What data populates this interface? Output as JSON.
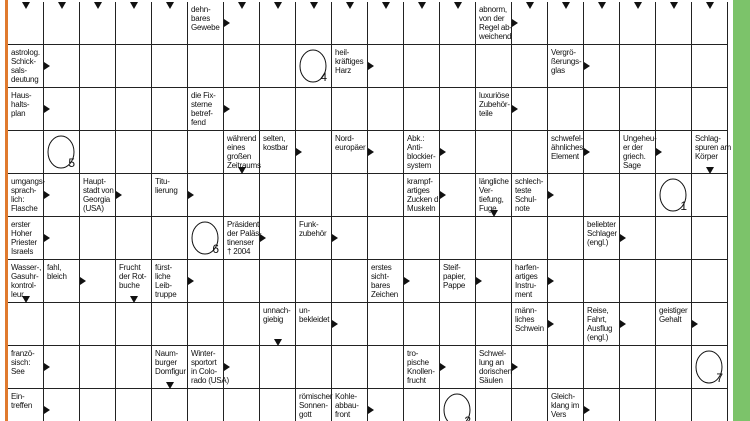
{
  "grid": {
    "rows": [
      [
        null,
        null,
        null,
        null,
        null,
        "dehn-\nbares\nGewebe",
        null,
        null,
        null,
        null,
        null,
        null,
        null,
        "abnorm,\nvon der\nRegel ab-\nweichend",
        null,
        null,
        null,
        null,
        null,
        null
      ],
      [
        "astrolog.\nSchick-\nsals-\ndeutung",
        null,
        null,
        null,
        null,
        null,
        null,
        null,
        4,
        "heil-\nkräftiges\nHarz",
        null,
        null,
        null,
        null,
        null,
        "Vergrö-\nßerungs-\nglas",
        null,
        null,
        null,
        null
      ],
      [
        "Haus-\nhalts-\nplan",
        null,
        null,
        null,
        null,
        "die Fix-\nsterne\nbetref-\nfend",
        null,
        null,
        null,
        null,
        null,
        null,
        null,
        "luxuriöse\nZubehör-\nteile",
        null,
        null,
        null,
        null,
        null,
        null
      ],
      [
        null,
        5,
        null,
        null,
        null,
        null,
        "während\neines\ngroßen\nZeitraums",
        "selten,\nkostbar",
        null,
        "Nord-\neuropäer",
        null,
        "Abk.:\nAnti-\nblockier-\nsystem",
        null,
        null,
        null,
        "schwefel-\nähnliches\nElement",
        null,
        "Ungeheu-\ner der\ngriech.\nSage",
        null,
        "Schlag-\nspuren am\nKörper"
      ],
      [
        "umgangs-\nsprach-\nlich:\nFlasche",
        null,
        "Haupt-\nstadt von\nGeorgia\n(USA)",
        null,
        "Titu-\nlierung",
        null,
        null,
        null,
        null,
        null,
        null,
        "krampf-\nartiges\nZucken d.\nMuskeln",
        null,
        "längliche\nVer-\ntiefung,\nFuge",
        "schlech-\nteste\nSchul-\nnote",
        null,
        null,
        null,
        1,
        null
      ],
      [
        "erster\nHoher\nPriester\nIsraels",
        null,
        null,
        null,
        null,
        6,
        "Präsident\nder Paläs-\ntinenser\n† 2004",
        null,
        "Funk-\nzubehör",
        null,
        null,
        null,
        null,
        null,
        null,
        null,
        "beliebter\nSchlager\n(engl.)",
        null,
        null,
        null
      ],
      [
        "Wasser-,\nGasuhr-\nkontrol-\nleur",
        "fahl,\nbleich",
        null,
        "Frucht\nder Rot-\nbuche",
        "fürst-\nliche\nLeib-\ntruppe",
        null,
        null,
        null,
        null,
        null,
        "erstes\nsicht-\nbares\nZeichen",
        null,
        "Steif-\npapier,\nPappe",
        null,
        "harfen-\nartiges\nInstru-\nment",
        null,
        null,
        null,
        null,
        null
      ],
      [
        null,
        null,
        null,
        null,
        null,
        null,
        null,
        "unnach-\ngiebig",
        "un-\nbekleidet",
        null,
        null,
        null,
        null,
        null,
        "männ-\nliches\nSchwein",
        null,
        "Reise,\nFahrt,\nAusflug\n(engl.)",
        null,
        "geistiger\nGehalt",
        null
      ],
      [
        "franzö-\nsisch:\nSee",
        null,
        null,
        null,
        "Naum-\nburger\nDomfigur",
        "Winter-\nsportort\nin Colo-\nrado (USA)",
        null,
        null,
        null,
        null,
        null,
        "tro-\npische\nKnollen-\nfrucht",
        null,
        "Schwel-\nlung an\ndorischen\nSäulen",
        null,
        null,
        null,
        null,
        null,
        7
      ],
      [
        "Ein-\ntreffen",
        null,
        null,
        null,
        null,
        null,
        null,
        null,
        "römischer\nSonnen-\ngott",
        "Kohle-\nabbau-\nfront",
        null,
        null,
        2,
        null,
        null,
        "Gleich-\nklang im\nVers",
        null,
        null,
        null,
        null
      ]
    ]
  }
}
